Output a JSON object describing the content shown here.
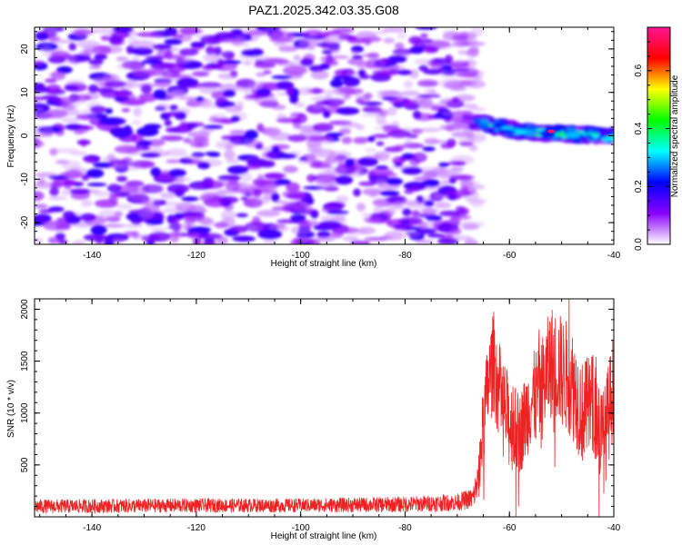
{
  "title": "PAZ1.2025.342.03.35.G08",
  "chart_data": [
    {
      "type": "heatmap",
      "xlabel": "Height of straight line (km)",
      "ylabel": "Frequency (Hz)",
      "xlim": [
        -151,
        -40
      ],
      "ylim": [
        -25,
        25
      ],
      "x_ticks": [
        -140,
        -120,
        -100,
        -80,
        -60,
        -40
      ],
      "x_tick_labels": [
        "-140",
        "-120",
        "-100",
        "-80",
        "-60",
        "-40"
      ],
      "y_ticks": [
        -20,
        -10,
        0,
        10,
        20
      ],
      "y_tick_labels": [
        "-20",
        "-10",
        "0",
        "10",
        "20"
      ],
      "colorbar": {
        "label": "Normalized spectral amplitude",
        "range": [
          0,
          0.75
        ],
        "ticks": [
          0.0,
          0.2,
          0.4,
          0.6
        ],
        "tick_labels": [
          "0.0",
          "0.2",
          "0.4",
          "0.6"
        ],
        "colors": [
          "#ffffff",
          "#8b00ff",
          "#0000ff",
          "#00ffff",
          "#00ff00",
          "#ffff00",
          "#ff0000",
          "#ff1493"
        ]
      },
      "noise_region": {
        "x_range": [
          -151,
          -66
        ],
        "freq_range": [
          -25,
          25
        ],
        "amplitude_range": [
          0.0,
          0.15
        ]
      },
      "signal_band": {
        "x_range": [
          -70,
          -40
        ],
        "center_freq": [
          4,
          3,
          2,
          1,
          0.8,
          0.5,
          0.2,
          0
        ],
        "center_x": [
          -70,
          -66,
          -62,
          -58,
          -54,
          -50,
          -45,
          -40
        ],
        "peak_amplitude": 0.72,
        "peak_x": -52,
        "peak_freq": 1
      }
    },
    {
      "type": "line",
      "xlabel": "Height of straight line (km)",
      "ylabel": "SNR (10 * v/v)",
      "xlim": [
        -151,
        -40
      ],
      "ylim": [
        0,
        2100
      ],
      "x_ticks": [
        -140,
        -120,
        -100,
        -80,
        -60,
        -40
      ],
      "x_tick_labels": [
        "-140",
        "-120",
        "-100",
        "-80",
        "-60",
        "-40"
      ],
      "y_ticks": [
        500,
        1000,
        1500,
        2000
      ],
      "y_tick_labels": [
        "500",
        "1000",
        "1500",
        "2000"
      ],
      "color": "#ee2222",
      "series_profile": {
        "x": [
          -151,
          -120,
          -100,
          -80,
          -70,
          -67,
          -66,
          -65,
          -64,
          -63,
          -62,
          -60,
          -58,
          -56,
          -54,
          -52,
          -50,
          -48,
          -46,
          -44,
          -42,
          -40
        ],
        "mean": [
          100,
          110,
          110,
          120,
          140,
          180,
          350,
          900,
          1300,
          1500,
          1200,
          900,
          800,
          1100,
          1200,
          1500,
          1400,
          1300,
          1000,
          1100,
          700,
          1300
        ],
        "spread": [
          80,
          80,
          80,
          90,
          100,
          120,
          200,
          400,
          450,
          500,
          500,
          450,
          400,
          450,
          500,
          550,
          550,
          550,
          500,
          500,
          500,
          500
        ]
      }
    }
  ]
}
